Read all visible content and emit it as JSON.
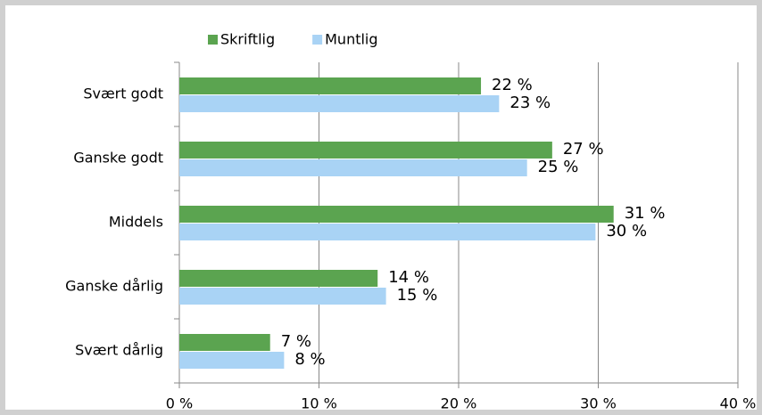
{
  "chart_data": {
    "type": "bar",
    "orientation": "horizontal",
    "categories": [
      "Svært godt",
      "Ganske godt",
      "Middels",
      "Ganske dårlig",
      "Svært dårlig"
    ],
    "series": [
      {
        "name": "Skriftlig",
        "color": "#5ba450",
        "values": [
          21.6,
          26.7,
          31.1,
          14.2,
          6.5
        ],
        "value_labels": [
          "22 %",
          "27 %",
          "31 %",
          "14 %",
          "7 %"
        ]
      },
      {
        "name": "Muntlig",
        "color": "#a9d3f5",
        "values": [
          22.9,
          24.9,
          29.8,
          14.8,
          7.5
        ],
        "value_labels": [
          "23 %",
          "25 %",
          "30 %",
          "15 %",
          "8 %"
        ]
      }
    ],
    "xlim": [
      0,
      40
    ],
    "xticks": [
      {
        "value": 0,
        "label": "0 %"
      },
      {
        "value": 10,
        "label": "10 %"
      },
      {
        "value": 20,
        "label": "20 %"
      },
      {
        "value": 30,
        "label": "30 %"
      },
      {
        "value": 40,
        "label": "40 %"
      }
    ],
    "grid": true,
    "legend": "top"
  }
}
